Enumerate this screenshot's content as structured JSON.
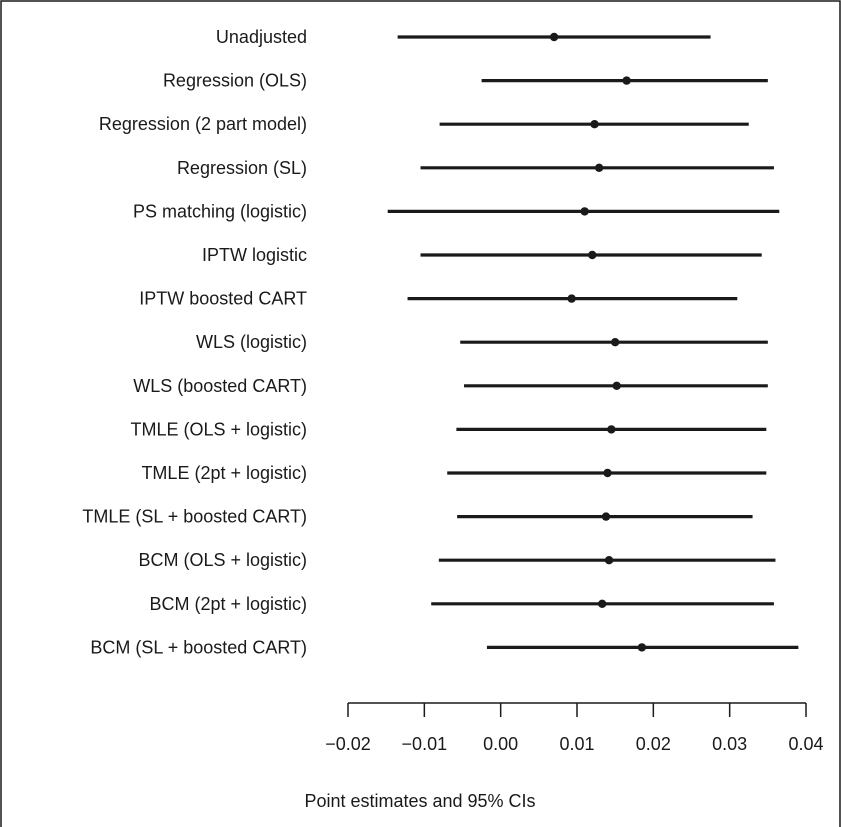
{
  "chart_data": {
    "type": "forest",
    "xlabel": "Point estimates and 95% CIs",
    "xlim": [
      -0.02,
      0.04
    ],
    "xticks": [
      -0.02,
      -0.01,
      0.0,
      0.01,
      0.02,
      0.03,
      0.04
    ],
    "xtick_labels": [
      "−0.02",
      "−0.01",
      "0.00",
      "0.01",
      "0.02",
      "0.03",
      "0.04"
    ],
    "grid": false,
    "rows": [
      {
        "label": "Unadjusted",
        "estimate": 0.007,
        "lower": -0.0135,
        "upper": 0.0275
      },
      {
        "label": "Regression (OLS)",
        "estimate": 0.0165,
        "lower": -0.0025,
        "upper": 0.035
      },
      {
        "label": "Regression (2 part model)",
        "estimate": 0.0123,
        "lower": -0.008,
        "upper": 0.0325
      },
      {
        "label": "Regression (SL)",
        "estimate": 0.0129,
        "lower": -0.0105,
        "upper": 0.0358
      },
      {
        "label": "PS matching (logistic)",
        "estimate": 0.011,
        "lower": -0.0148,
        "upper": 0.0365
      },
      {
        "label": "IPTW logistic",
        "estimate": 0.012,
        "lower": -0.0105,
        "upper": 0.0342
      },
      {
        "label": "IPTW boosted CART",
        "estimate": 0.0093,
        "lower": -0.0122,
        "upper": 0.031
      },
      {
        "label": "WLS (logistic)",
        "estimate": 0.015,
        "lower": -0.0053,
        "upper": 0.035
      },
      {
        "label": "WLS (boosted CART)",
        "estimate": 0.0152,
        "lower": -0.0048,
        "upper": 0.035
      },
      {
        "label": "TMLE (OLS + logistic)",
        "estimate": 0.0145,
        "lower": -0.0058,
        "upper": 0.0348
      },
      {
        "label": "TMLE (2pt + logistic)",
        "estimate": 0.014,
        "lower": -0.007,
        "upper": 0.0348
      },
      {
        "label": "TMLE (SL + boosted CART)",
        "estimate": 0.0138,
        "lower": -0.0057,
        "upper": 0.033
      },
      {
        "label": "BCM (OLS + logistic)",
        "estimate": 0.0142,
        "lower": -0.0081,
        "upper": 0.036
      },
      {
        "label": "BCM (2pt + logistic)",
        "estimate": 0.0133,
        "lower": -0.0091,
        "upper": 0.0358
      },
      {
        "label": "BCM (SL + boosted CART)",
        "estimate": 0.0185,
        "lower": -0.0018,
        "upper": 0.039
      }
    ],
    "colors": {
      "marks": "#1a1a1a",
      "frame": "#1a1a1a",
      "background": "#ffffff"
    }
  }
}
